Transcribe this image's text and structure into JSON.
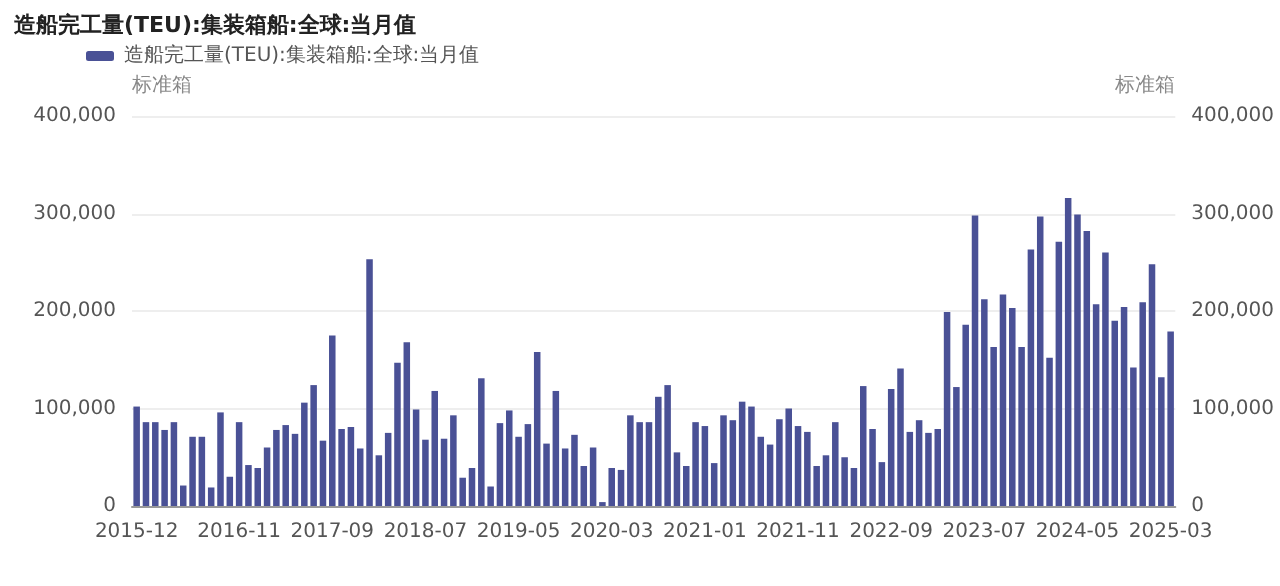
{
  "chart_data": {
    "type": "bar",
    "title": "造船完工量(TEU):集装箱船:全球:当月值",
    "categories": [
      "2015-12",
      null,
      null,
      null,
      null,
      null,
      null,
      null,
      null,
      null,
      null,
      "2016-11",
      null,
      null,
      null,
      null,
      null,
      null,
      null,
      null,
      null,
      "2017-09",
      null,
      null,
      null,
      null,
      null,
      null,
      null,
      null,
      null,
      "2018-07",
      null,
      null,
      null,
      null,
      null,
      null,
      null,
      null,
      null,
      "2019-05",
      null,
      null,
      null,
      null,
      null,
      null,
      null,
      null,
      null,
      "2020-03",
      null,
      null,
      null,
      null,
      null,
      null,
      null,
      null,
      null,
      "2021-01",
      null,
      null,
      null,
      null,
      null,
      null,
      null,
      null,
      null,
      "2021-11",
      null,
      null,
      null,
      null,
      null,
      null,
      null,
      null,
      null,
      "2022-09",
      null,
      null,
      null,
      null,
      null,
      null,
      null,
      null,
      null,
      "2023-07",
      null,
      null,
      null,
      null,
      null,
      null,
      null,
      null,
      null,
      "2024-05",
      null,
      null,
      null,
      null,
      null,
      null,
      null,
      null,
      null,
      "2025-03"
    ],
    "series": [
      {
        "name": "造船完工量(TEU):集装箱船:全球:当月值",
        "color": "#4a5196",
        "values": [
          102000,
          86000,
          86000,
          78000,
          86000,
          21000,
          71000,
          71000,
          19000,
          96000,
          30000,
          86000,
          42000,
          39000,
          60000,
          78000,
          83000,
          74000,
          106000,
          124000,
          67000,
          175000,
          79000,
          81000,
          59000,
          253000,
          52000,
          75000,
          147000,
          168000,
          99000,
          68000,
          118000,
          69000,
          93000,
          29000,
          39000,
          131000,
          20000,
          85000,
          98000,
          71000,
          84000,
          158000,
          64000,
          118000,
          59000,
          73000,
          41000,
          60000,
          4000,
          39000,
          37000,
          93000,
          86000,
          86000,
          112000,
          124000,
          55000,
          41000,
          86000,
          82000,
          44000,
          93000,
          88000,
          107000,
          102000,
          71000,
          63000,
          89000,
          100000,
          82000,
          76000,
          41000,
          52000,
          86000,
          50000,
          39000,
          123000,
          79000,
          45000,
          120000,
          141000,
          76000,
          88000,
          75000,
          79000,
          199000,
          122000,
          186000,
          298000,
          212000,
          163000,
          217000,
          203000,
          163000,
          263000,
          297000,
          152000,
          271000,
          316000,
          299000,
          282000,
          207000,
          260000,
          190000,
          204000,
          142000,
          209000,
          248000,
          132000,
          179000
        ]
      }
    ],
    "ylabel": "标准箱",
    "y2label": "标准箱",
    "ylim": [
      0,
      400000
    ],
    "yticks": [
      {
        "value": 0,
        "label": "0"
      },
      {
        "value": 100000,
        "label": "100,000"
      },
      {
        "value": 200000,
        "label": "200,000"
      },
      {
        "value": 300000,
        "label": "300,000"
      },
      {
        "value": 400000,
        "label": "400,000"
      }
    ],
    "y2lim": [
      0,
      400000
    ],
    "y2ticks": [
      {
        "value": 0,
        "label": "0"
      },
      {
        "value": 100000,
        "label": "100,000"
      },
      {
        "value": 200000,
        "label": "200,000"
      },
      {
        "value": 300000,
        "label": "300,000"
      },
      {
        "value": 400000,
        "label": "400,000"
      }
    ],
    "grid": "y",
    "legend": "top left"
  }
}
